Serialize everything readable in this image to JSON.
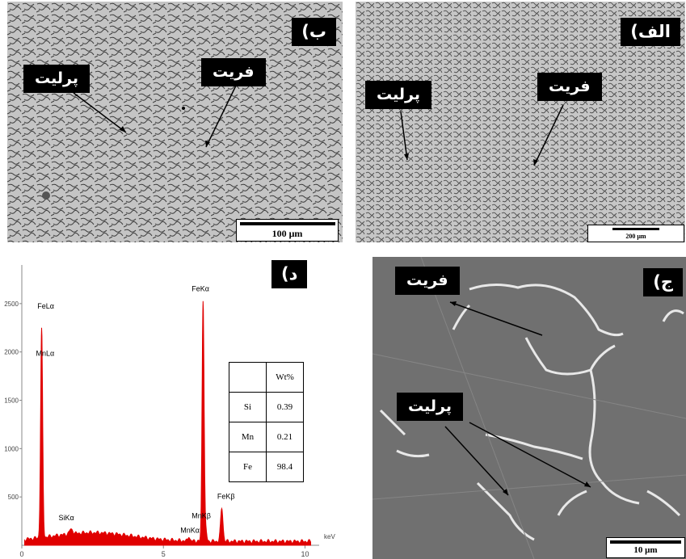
{
  "panels": {
    "b": {
      "tag": "ب)",
      "label_pearlite": "پرلیت",
      "label_ferrite": "فریت",
      "scale": "100 μm"
    },
    "alef": {
      "tag": "الف)",
      "label_pearlite": "پرلیت",
      "label_ferrite": "فریت",
      "scale": "200 μm"
    },
    "dal": {
      "tag": "د)"
    },
    "jim": {
      "tag": "ج)",
      "label_ferrite": "فریت",
      "label_pearlite": "پرلیت",
      "scale": "10 μm"
    }
  },
  "chart_data": {
    "type": "line",
    "xlabel": "keV",
    "xlim": [
      0,
      10.5
    ],
    "ylim": [
      0,
      2900
    ],
    "x_ticks": [
      "0",
      "5",
      "10"
    ],
    "y_ticks": [
      "500",
      "1000",
      "1500",
      "2000",
      "2500"
    ],
    "series_color": "#e00000",
    "peaks": [
      {
        "name": "FeLα",
        "x": 0.7,
        "y": 2250
      },
      {
        "name": "MnLα",
        "x": 0.64,
        "y": 1700
      },
      {
        "name": "SiKα",
        "x": 1.74,
        "y": 170
      },
      {
        "name": "MnKα",
        "x": 5.9,
        "y": 80
      },
      {
        "name": "MnKβ",
        "x": 6.49,
        "y": 170
      },
      {
        "name": "FeKα",
        "x": 6.4,
        "y": 2520
      },
      {
        "name": "FeKβ",
        "x": 7.06,
        "y": 380
      }
    ],
    "table": {
      "header": [
        "",
        "Wt%"
      ],
      "rows": [
        {
          "element": "Si",
          "wt": "0.39"
        },
        {
          "element": "Mn",
          "wt": "0.21"
        },
        {
          "element": "Fe",
          "wt": "98.4"
        }
      ]
    }
  }
}
